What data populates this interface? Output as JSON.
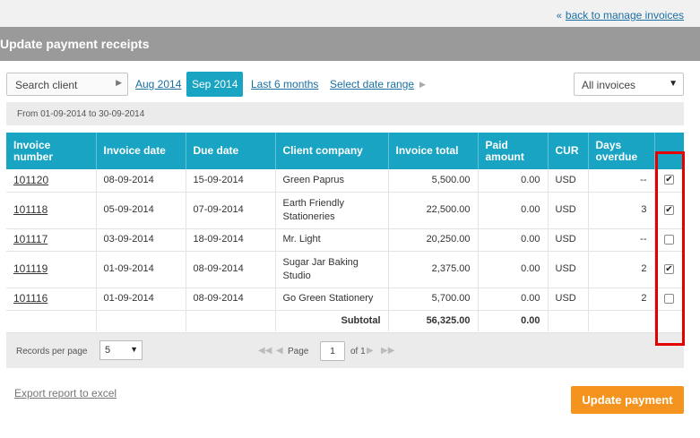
{
  "nav": {
    "back_link": "back to manage invoices"
  },
  "header": {
    "title": "Update payment receipts"
  },
  "filters": {
    "search_placeholder": "Search client",
    "periods": [
      "Aug 2014",
      "Sep 2014",
      "Last 6 months",
      "Select date range"
    ],
    "active_period": "Sep 2014",
    "invoice_filter": "All invoices",
    "date_range_text": "From 01-09-2014 to 30-09-2014"
  },
  "table": {
    "columns": [
      "Invoice number",
      "Invoice date",
      "Due date",
      "Client company",
      "Invoice total",
      "Paid amount",
      "CUR",
      "Days overdue",
      ""
    ],
    "rows": [
      {
        "number": "101120",
        "invoice_date": "08-09-2014",
        "due_date": "15-09-2014",
        "client": "Green Paprus",
        "total": "5,500.00",
        "paid": "0.00",
        "cur": "USD",
        "overdue": "--",
        "checked": true
      },
      {
        "number": "101118",
        "invoice_date": "05-09-2014",
        "due_date": "07-09-2014",
        "client": "Earth Friendly Stationeries",
        "total": "22,500.00",
        "paid": "0.00",
        "cur": "USD",
        "overdue": "3",
        "checked": true
      },
      {
        "number": "101117",
        "invoice_date": "03-09-2014",
        "due_date": "18-09-2014",
        "client": "Mr. Light",
        "total": "20,250.00",
        "paid": "0.00",
        "cur": "USD",
        "overdue": "--",
        "checked": false
      },
      {
        "number": "101119",
        "invoice_date": "01-09-2014",
        "due_date": "08-09-2014",
        "client": "Sugar Jar Baking Studio",
        "total": "2,375.00",
        "paid": "0.00",
        "cur": "USD",
        "overdue": "2",
        "checked": true
      },
      {
        "number": "101116",
        "invoice_date": "01-09-2014",
        "due_date": "08-09-2014",
        "client": "Go Green Stationery",
        "total": "5,700.00",
        "paid": "0.00",
        "cur": "USD",
        "overdue": "2",
        "checked": false
      }
    ],
    "subtotal_label": "Subtotal",
    "subtotal_total": "56,325.00",
    "subtotal_paid": "0.00"
  },
  "pager": {
    "records_label": "Records per page",
    "records_value": "5",
    "page_label": "Page",
    "page_value": "1",
    "of_label": "of 1"
  },
  "footer": {
    "export_label": "Export report to excel",
    "update_label": "Update payment"
  },
  "colors": {
    "accent": "#19a4c3",
    "header_bg": "#9a9a9a",
    "primary_button": "#f4941e",
    "highlight": "#e50000"
  }
}
